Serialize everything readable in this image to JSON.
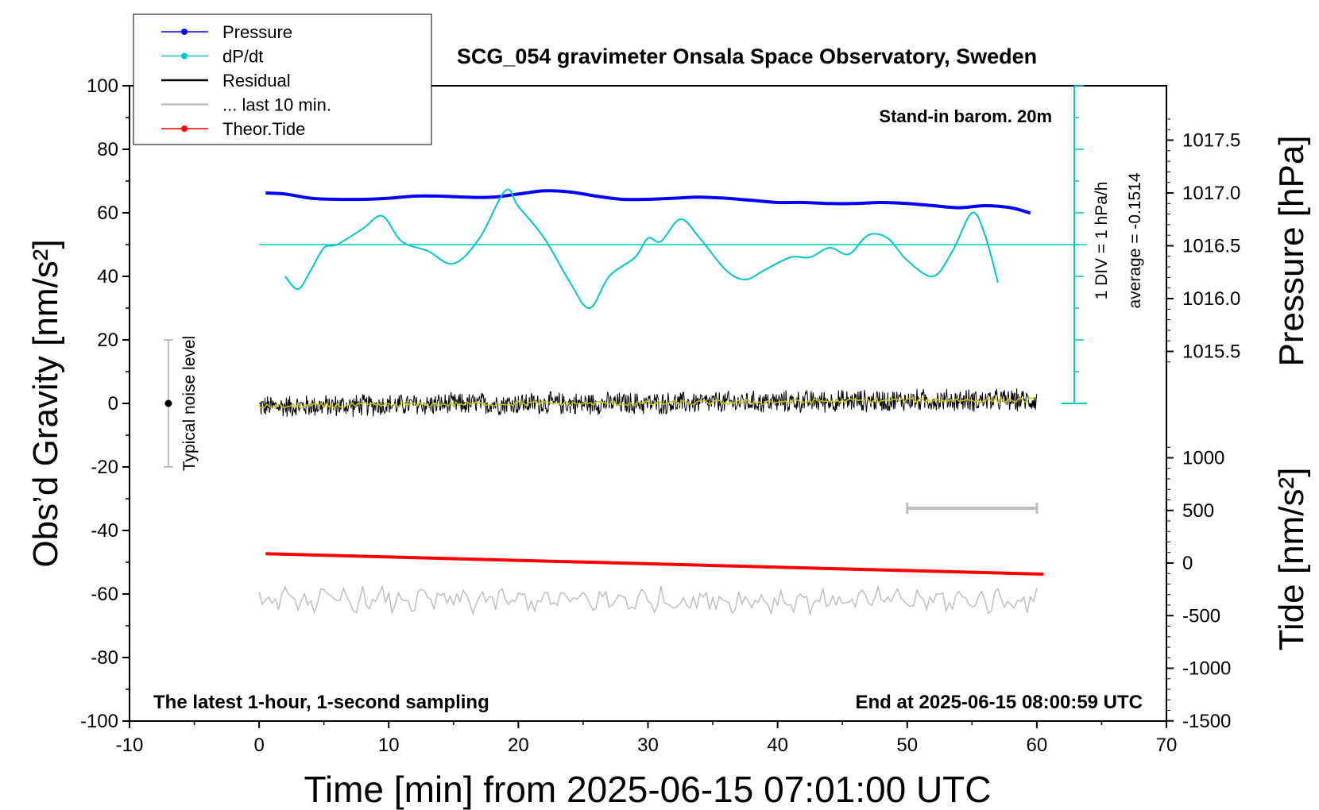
{
  "chart_data": {
    "type": "line",
    "title": "SCG_054 gravimeter Onsala Space Observatory, Sweden",
    "xlabel": "Time [min] from 2025-06-15 07:01:00 UTC",
    "ylabel_left": "Obs’d Gravity [nm/s²]",
    "ylabel_right_top": "Pressure [hPa]",
    "ylabel_right_bottom": "Tide [nm/s²]",
    "xlim": [
      -10,
      70
    ],
    "ylim_left": [
      -100,
      100
    ],
    "x_ticks": [
      "-10",
      "0",
      "10",
      "20",
      "30",
      "40",
      "50",
      "60",
      "70"
    ],
    "y_ticks_left": [
      "100",
      "80",
      "60",
      "40",
      "20",
      "0",
      "-20",
      "-40",
      "-60",
      "-80",
      "-100"
    ],
    "pressure_ticks": [
      "1017.5",
      "1017.0",
      "1016.5",
      "1016.0",
      "1015.5"
    ],
    "tide_ticks": [
      "1000",
      "500",
      "0",
      "-500",
      "-1000",
      "-1500"
    ],
    "legend_placement": "top-left",
    "legend": [
      {
        "name": "Pressure",
        "color": "#0000ff",
        "marker": true
      },
      {
        "name": "dP/dt",
        "color": "#00c8c8",
        "marker": true
      },
      {
        "name": "Residual",
        "color": "#000000",
        "marker": false
      },
      {
        "name": "... last 10 min.",
        "color": "#bebebe",
        "marker": false
      },
      {
        "name": "Theor.Tide",
        "color": "#ff0000",
        "marker": true
      }
    ],
    "annotations": {
      "barometer": "Stand-in barom. 20m",
      "div_note": "1 DIV = 1 hPa/h",
      "average_note": "average = -0.1514",
      "noise_label": "Typical noise level",
      "sampling_note": "The latest 1-hour, 1-second sampling",
      "end_note": "End at 2025-06-15 08:00:59 UTC"
    },
    "series": [
      {
        "name": "Pressure",
        "color": "#0000ff",
        "unit": "hPa",
        "x": [
          0.5,
          2,
          4,
          6,
          8,
          10,
          12,
          14,
          16,
          18,
          20,
          22,
          24,
          26,
          28,
          30,
          32,
          34,
          36,
          38,
          40,
          42,
          44,
          46,
          48,
          50,
          52,
          54,
          56,
          58,
          59.5
        ],
        "values": [
          1017.0,
          1016.99,
          1016.95,
          1016.94,
          1016.94,
          1016.95,
          1016.97,
          1016.97,
          1016.96,
          1016.96,
          1016.99,
          1017.02,
          1017.01,
          1016.97,
          1016.94,
          1016.94,
          1016.95,
          1016.96,
          1016.95,
          1016.93,
          1016.91,
          1016.91,
          1016.9,
          1016.9,
          1016.91,
          1016.9,
          1016.88,
          1016.86,
          1016.88,
          1016.86,
          1016.81
        ]
      },
      {
        "name": "dP/dt",
        "color": "#00c8c8",
        "unit": "nm/s² (plot scale, zero line at 50)",
        "x": [
          2,
          3,
          4,
          5,
          6,
          8,
          9.5,
          11,
          13,
          15,
          17,
          19,
          20,
          22,
          24,
          25.5,
          27,
          29,
          30,
          31,
          32.5,
          34,
          36,
          37.5,
          39,
          41,
          42.5,
          44,
          45.5,
          47,
          48.5,
          50,
          52,
          53.5,
          55,
          56,
          57
        ],
        "values": [
          40,
          36,
          42,
          49,
          50,
          55,
          59,
          51,
          48,
          44,
          52,
          67,
          62,
          52,
          38,
          30,
          40,
          46,
          52,
          51,
          58,
          52,
          42,
          39,
          42,
          46,
          46,
          49,
          47,
          53,
          52,
          45,
          40,
          48,
          60,
          53,
          38
        ]
      },
      {
        "name": "Residual",
        "color": "#000000",
        "unit": "nm/s²",
        "x": [
          0,
          10,
          20,
          30,
          40,
          50,
          60
        ],
        "values": [
          -1,
          -0.5,
          0,
          0,
          0.5,
          1,
          1
        ],
        "noise_amplitude": 4
      },
      {
        "name": "... last 10 min.",
        "color": "#bebebe",
        "unit": "nm/s² (plot scale)",
        "x": [
          0,
          10,
          20,
          30,
          40,
          50,
          60
        ],
        "values": [
          -62,
          -62,
          -62,
          -62,
          -62,
          -62,
          -62
        ],
        "noise_amplitude": 4
      },
      {
        "name": "Theor.Tide",
        "color": "#ff0000",
        "unit": "nm/s²",
        "x": [
          0.5,
          60.5
        ],
        "values": [
          88,
          -106
        ]
      }
    ],
    "noise_bar": {
      "x": -7,
      "from": -20,
      "to": 20
    },
    "scale_bar": {
      "x_from": 50,
      "x_to": 60,
      "y": -33
    }
  }
}
